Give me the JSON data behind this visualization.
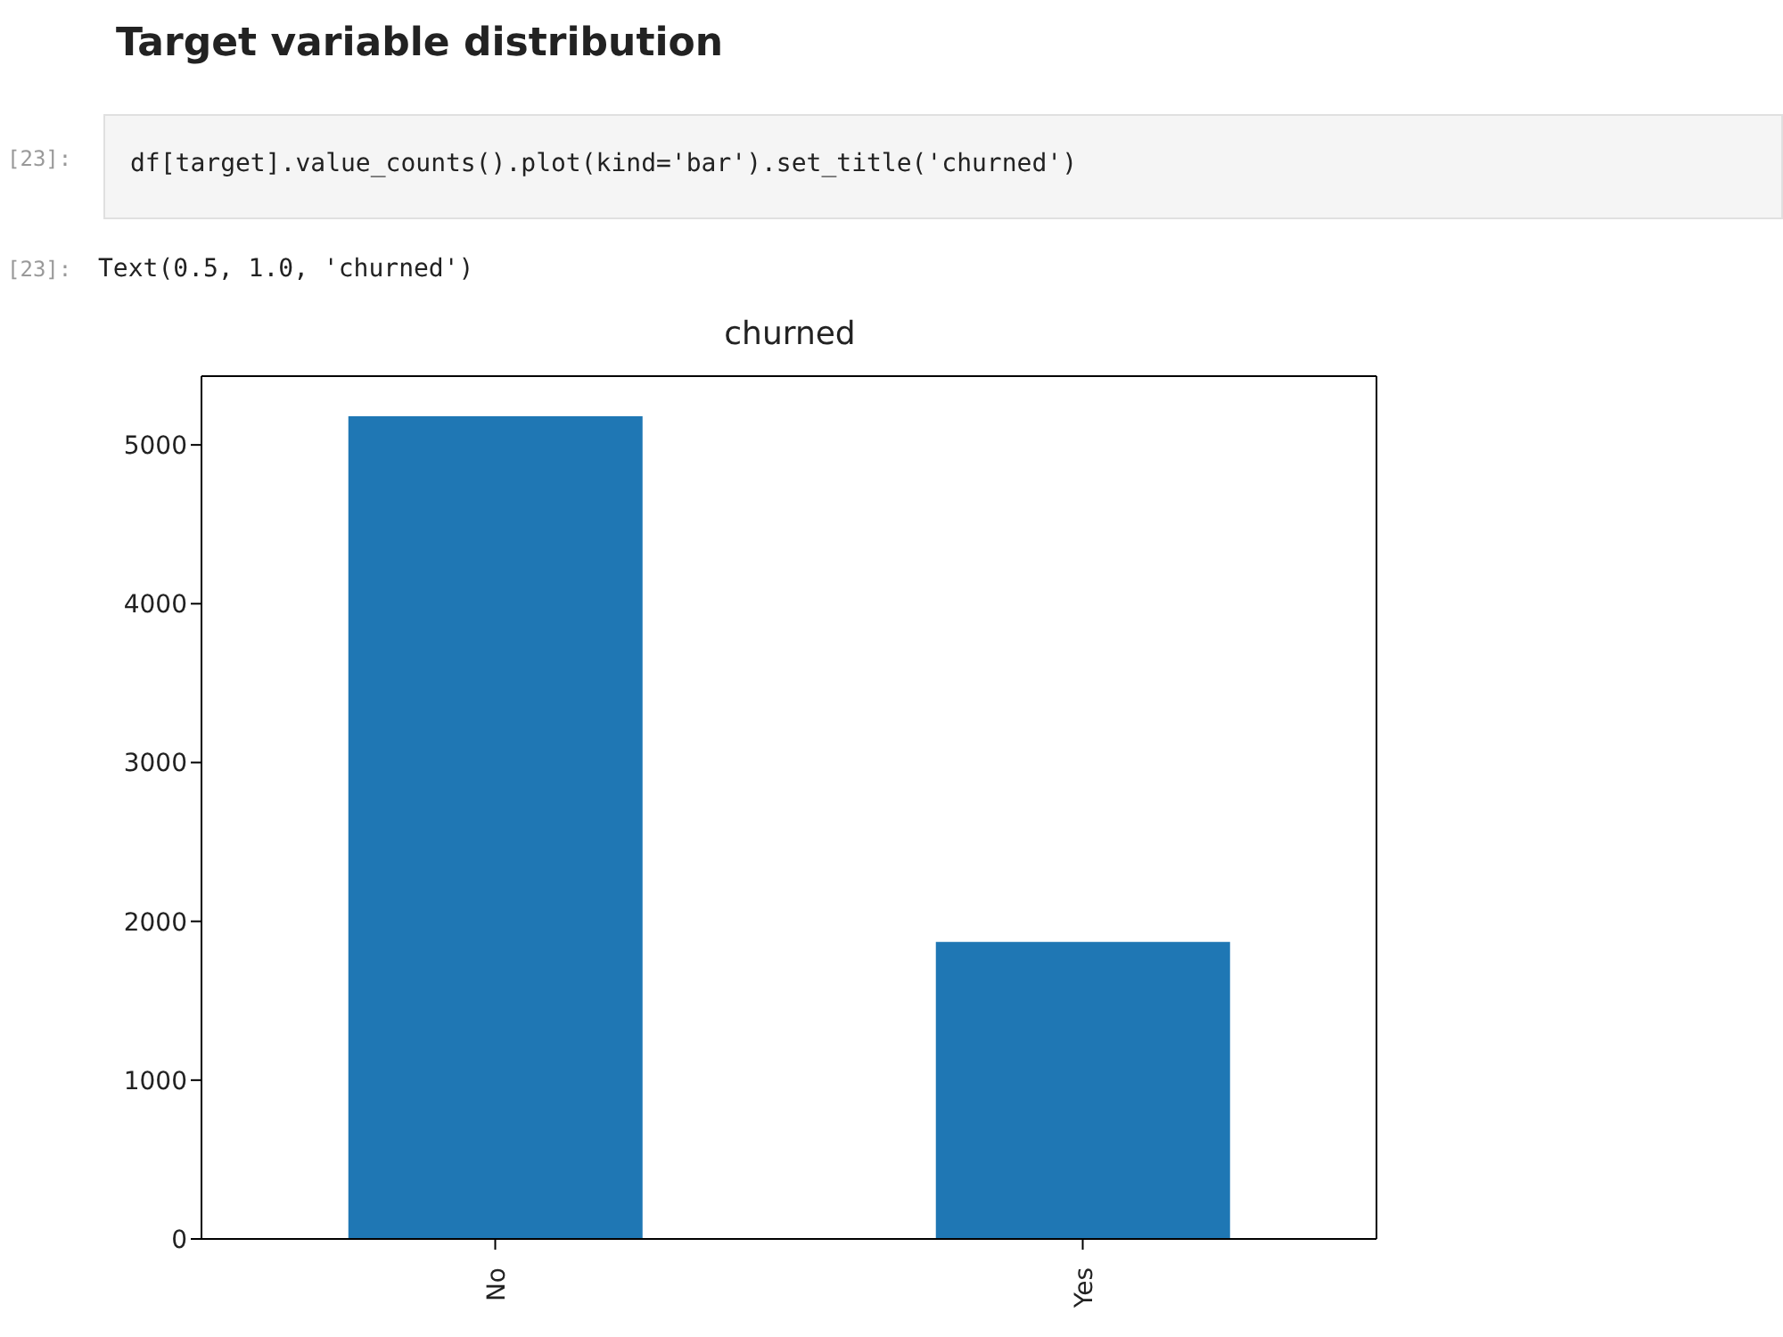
{
  "chart_data": {
    "type": "bar",
    "title": "churned",
    "annotations": [
      "Target variable distribution",
      "[23]:",
      "df[target].value_counts().plot(kind='bar').set_title('churned')",
      "[23]:",
      "Text(0.5, 1.0, 'churned')"
    ],
    "categories": [
      "No",
      "Yes"
    ],
    "values": [
      5180,
      1870
    ],
    "color": "#1f77b4",
    "ylim": [
      0,
      5433
    ],
    "yticks": [
      0,
      1000,
      2000,
      3000,
      4000,
      5000
    ]
  }
}
